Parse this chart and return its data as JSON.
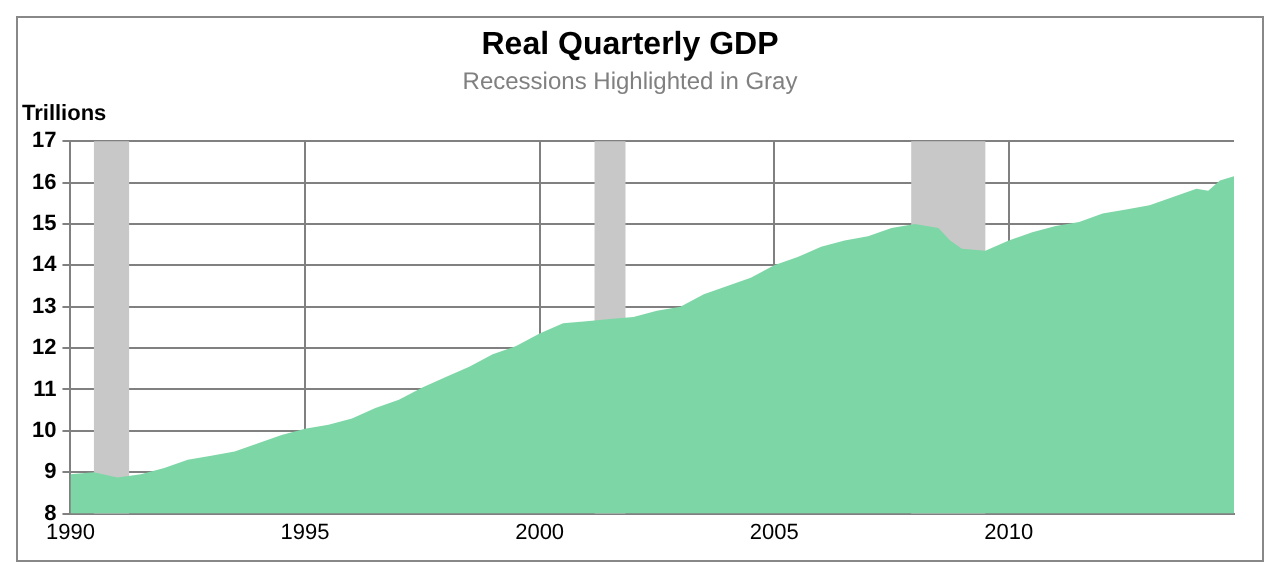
{
  "chart_data": {
    "type": "area",
    "title": "Real Quarterly GDP",
    "subtitle": "Recessions Highlighted in Gray",
    "ylabel": "Trillions",
    "x": [
      1990,
      1990.5,
      1991,
      1991.5,
      1992,
      1992.5,
      1993,
      1993.5,
      1994,
      1994.5,
      1995,
      1995.5,
      1996,
      1996.5,
      1997,
      1997.5,
      1998,
      1998.5,
      1999,
      1999.5,
      2000,
      2000.5,
      2001,
      2001.5,
      2002,
      2002.5,
      2003,
      2003.5,
      2004,
      2004.5,
      2005,
      2005.5,
      2006,
      2006.5,
      2007,
      2007.5,
      2008,
      2008.25,
      2008.5,
      2008.75,
      2009,
      2009.5,
      2010,
      2010.5,
      2011,
      2011.5,
      2012,
      2012.5,
      2013,
      2013.5,
      2014,
      2014.25,
      2014.5,
      2014.8
    ],
    "series": [
      {
        "color": "#7dd6a5",
        "values": [
          8.95,
          9.0,
          8.87,
          8.95,
          9.1,
          9.3,
          9.4,
          9.5,
          9.7,
          9.9,
          10.05,
          10.15,
          10.3,
          10.55,
          10.75,
          11.05,
          11.3,
          11.55,
          11.85,
          12.05,
          12.35,
          12.6,
          12.65,
          12.7,
          12.75,
          12.9,
          13.0,
          13.3,
          13.5,
          13.7,
          14.0,
          14.2,
          14.45,
          14.6,
          14.7,
          14.9,
          15.0,
          14.95,
          14.9,
          14.6,
          14.4,
          14.35,
          14.6,
          14.8,
          14.95,
          15.05,
          15.25,
          15.35,
          15.45,
          15.65,
          15.85,
          15.8,
          16.05,
          16.15
        ]
      }
    ],
    "xlim": [
      1990,
      2014.8
    ],
    "xticks": [
      1990,
      1995,
      2000,
      2005,
      2010
    ],
    "ylim": [
      8,
      17
    ],
    "yticks": [
      8,
      9,
      10,
      11,
      12,
      13,
      14,
      15,
      16,
      17
    ],
    "grid": true,
    "legend": false,
    "bands": [
      {
        "axis": "x",
        "from": 1990.5,
        "to": 1991.25,
        "color": "#c8c8c8"
      },
      {
        "axis": "x",
        "from": 2001.17,
        "to": 2001.83,
        "color": "#c8c8c8"
      },
      {
        "axis": "x",
        "from": 2007.92,
        "to": 2009.5,
        "color": "#c8c8c8"
      }
    ]
  }
}
